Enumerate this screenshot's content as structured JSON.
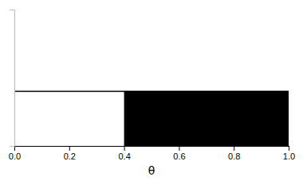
{
  "chart_data": {
    "type": "line",
    "xlabel": "θ",
    "series": [
      {
        "type": "line",
        "x": [
          0.0,
          1.0
        ],
        "values": [
          1.0,
          1.0
        ],
        "color": "#000000"
      },
      {
        "type": "area",
        "x": [
          0.4,
          1.0
        ],
        "values": [
          1.0,
          1.0
        ],
        "color": "#000000"
      }
    ],
    "xlim": [
      0.0,
      1.0
    ],
    "ylim": [
      0.0,
      2.5
    ],
    "xticks": [
      {
        "value": 0.0,
        "label": "0.0"
      },
      0.2,
      0.4,
      0.6,
      0.8,
      {
        "value": 1.0,
        "label": "1.0"
      }
    ],
    "yticks": [],
    "tick_labels": "x"
  }
}
